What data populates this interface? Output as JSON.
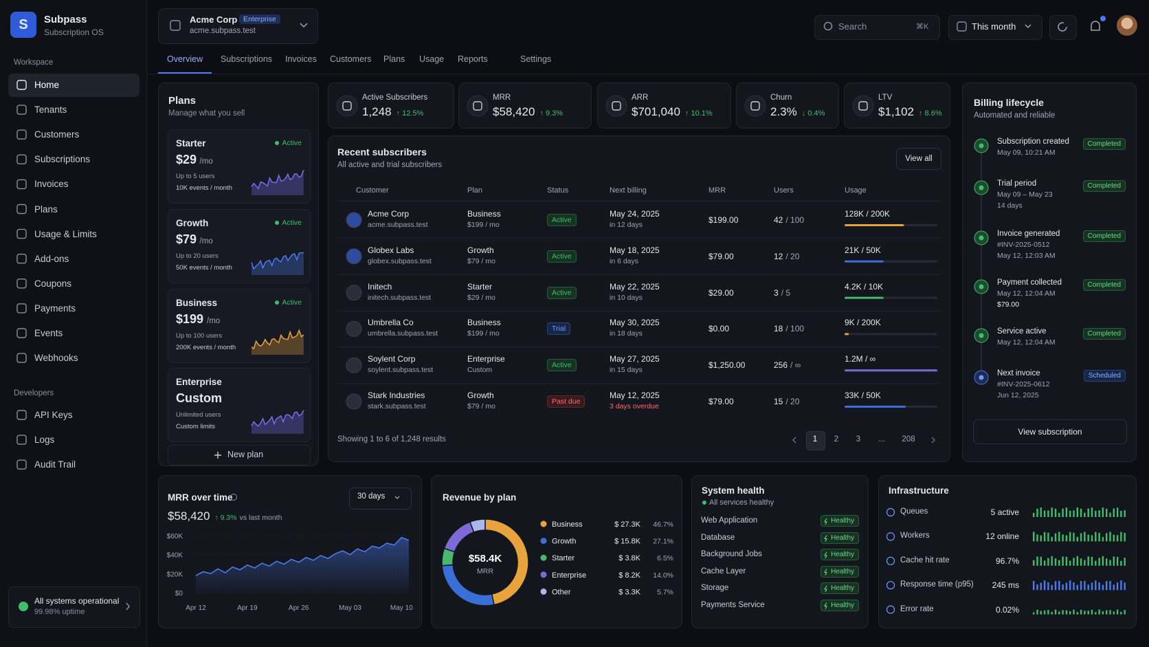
{
  "brand": {
    "logo": "S",
    "name": "Subpass",
    "tagline": "Subscription OS"
  },
  "org": {
    "name": "Acme Corp",
    "badge": "Enterprise",
    "domain": "acme.subpass.test"
  },
  "nav": {
    "workspace_label": "Workspace",
    "workspace": [
      "Home",
      "Tenants",
      "Customers",
      "Subscriptions",
      "Invoices",
      "Plans",
      "Usage & Limits",
      "Add-ons",
      "Coupons",
      "Payments",
      "Events",
      "Webhooks"
    ],
    "developers_label": "Developers",
    "developers": [
      "API Keys",
      "Logs",
      "Audit Trail"
    ]
  },
  "status": {
    "title": "All systems operational",
    "uptime": "99.98% uptime"
  },
  "search": {
    "placeholder": "Search",
    "shortcut": "⌘K"
  },
  "period": "This month",
  "tabs": [
    "Overview",
    "Subscriptions",
    "Invoices",
    "Customers",
    "Plans",
    "Usage",
    "Reports",
    "Settings"
  ],
  "plans": {
    "title": "Plans",
    "subtitle": "Manage what you sell",
    "new_plan": "New plan",
    "items": [
      {
        "name": "Starter",
        "status": "Active",
        "price": "$29",
        "unit": "/mo",
        "users": "Up to 5 users",
        "events": "10K events / month",
        "color": "#7b6cf0"
      },
      {
        "name": "Growth",
        "status": "Active",
        "price": "$79",
        "unit": "/mo",
        "users": "Up to 20 users",
        "events": "50K events / month",
        "color": "#4a7bf0"
      },
      {
        "name": "Business",
        "status": "Active",
        "price": "$199",
        "unit": "/mo",
        "users": "Up to 100 users",
        "events": "200K events / month",
        "color": "#e8a33d"
      },
      {
        "name": "Enterprise",
        "price": "Custom",
        "users": "Unlimited users",
        "events": "Custom limits",
        "color": "#7b6cf0"
      }
    ]
  },
  "kpis": [
    {
      "label": "Active Subscribers",
      "value": "1,248",
      "change": "↑ 12.5%"
    },
    {
      "label": "MRR",
      "value": "$58,420",
      "change": "↑ 9.3%"
    },
    {
      "label": "ARR",
      "value": "$701,040",
      "change": "↑ 10.1%"
    },
    {
      "label": "Churn",
      "value": "2.3%",
      "change": "↓ 0.4%"
    },
    {
      "label": "LTV",
      "value": "$1,102",
      "change": "↑ 8.6%"
    }
  ],
  "subscribers": {
    "title": "Recent subscribers",
    "subtitle": "All active and trial subscribers",
    "view_all": "View all",
    "columns": [
      "Customer",
      "Plan",
      "Status",
      "Next billing",
      "MRR",
      "Users",
      "Usage"
    ],
    "rows": [
      {
        "name": "Acme Corp",
        "domain": "acme.subpass.test",
        "plan": "Business",
        "price": "$199 / mo",
        "status": "Active",
        "next": "May 24, 2025",
        "due": "in 12 days",
        "mrr": "$199.00",
        "users": "42",
        "limit": "/ 100",
        "usage": "128K / 200K"
      },
      {
        "name": "Globex Labs",
        "domain": "globex.subpass.test",
        "plan": "Growth",
        "price": "$79 / mo",
        "status": "Active",
        "next": "May 18, 2025",
        "due": "in 6 days",
        "mrr": "$79.00",
        "users": "12",
        "limit": "/ 20",
        "usage": "21K / 50K"
      },
      {
        "name": "Initech",
        "domain": "initech.subpass.test",
        "plan": "Starter",
        "price": "$29 / mo",
        "status": "Active",
        "next": "May 22, 2025",
        "due": "in 10 days",
        "mrr": "$29.00",
        "users": "3",
        "limit": "/ 5",
        "usage": "4.2K / 10K"
      },
      {
        "name": "Umbrella Co",
        "domain": "umbrella.subpass.test",
        "plan": "Business",
        "price": "$199 / mo",
        "status": "Trial",
        "next": "May 30, 2025",
        "due": "in 18 days",
        "mrr": "$0.00",
        "users": "18",
        "limit": "/ 100",
        "usage": "9K / 200K"
      },
      {
        "name": "Soylent Corp",
        "domain": "soylent.subpass.test",
        "plan": "Enterprise",
        "price": "Custom",
        "status": "Active",
        "next": "May 27, 2025",
        "due": "in 15 days",
        "mrr": "$1,250.00",
        "users": "256",
        "limit": "/ ∞",
        "usage": "1.2M / ∞"
      },
      {
        "name": "Stark Industries",
        "domain": "stark.subpass.test",
        "plan": "Growth",
        "price": "$79 / mo",
        "status": "Past due",
        "next": "May 12, 2025",
        "due": "3 days overdue",
        "mrr": "$79.00",
        "users": "15",
        "limit": "/ 20",
        "usage": "33K / 50K"
      }
    ],
    "footer": "Showing 1 to 6 of 1,248 results",
    "pages": [
      "1",
      "2",
      "3",
      "...",
      "208"
    ]
  },
  "billing": {
    "title": "Billing lifecycle",
    "subtitle": "Automated and reliable",
    "button": "View subscription",
    "steps": [
      {
        "title": "Subscription created",
        "lines": [
          "May 09, 10:21 AM"
        ],
        "status": "Completed"
      },
      {
        "title": "Trial period",
        "lines": [
          "May 09 – May 23",
          "14 days"
        ],
        "status": "Completed"
      },
      {
        "title": "Invoice generated",
        "lines": [
          "#INV-2025-0512",
          "May 12, 12:03 AM"
        ],
        "status": "Completed"
      },
      {
        "title": "Payment collected",
        "lines": [
          "May 12, 12:04 AM",
          "$79.00"
        ],
        "status": "Completed"
      },
      {
        "title": "Service active",
        "lines": [
          "May 12, 12:04 AM"
        ],
        "status": "Completed"
      },
      {
        "title": "Next invoice",
        "lines": [
          "#INV-2025-0612",
          "Jun 12, 2025"
        ],
        "status": "Scheduled"
      }
    ]
  },
  "health": {
    "title": "System health",
    "subtitle": "All services healthy",
    "items": [
      {
        "name": "Web Application",
        "status": "Healthy"
      },
      {
        "name": "Database",
        "status": "Healthy"
      },
      {
        "name": "Background Jobs",
        "status": "Healthy"
      },
      {
        "name": "Cache Layer",
        "status": "Healthy"
      },
      {
        "name": "Storage",
        "status": "Healthy"
      },
      {
        "name": "Payments Service",
        "status": "Healthy"
      }
    ]
  },
  "infrastructure": {
    "title": "Infrastructure",
    "items": [
      {
        "name": "Queues",
        "value": "5 active",
        "color": "#3fbf6a"
      },
      {
        "name": "Workers",
        "value": "12 online",
        "color": "#3fbf6a"
      },
      {
        "name": "Cache hit rate",
        "value": "96.7%",
        "color": "#3fbf6a"
      },
      {
        "name": "Response time (p95)",
        "value": "245 ms",
        "color": "#4a7bf0"
      },
      {
        "name": "Error rate",
        "value": "0.02%",
        "color": "#3fbf6a"
      }
    ]
  },
  "chart_data": [
    {
      "type": "line",
      "title": "MRR over time",
      "headline": "$58,420",
      "change": "↑ 9.3%",
      "comparison": "vs last month",
      "range": "30 days",
      "color": "#4a7bf0",
      "categories": [
        "Apr 12",
        null,
        null,
        null,
        null,
        null,
        null,
        "Apr 19",
        null,
        null,
        null,
        null,
        null,
        null,
        "Apr 26",
        null,
        null,
        null,
        null,
        null,
        null,
        "May 03",
        null,
        null,
        null,
        null,
        null,
        null,
        "May 10",
        null
      ],
      "values": [
        18000,
        22000,
        20000,
        25000,
        21000,
        27000,
        24000,
        29000,
        26000,
        31000,
        28000,
        33000,
        30000,
        35000,
        32000,
        37000,
        34000,
        39000,
        36000,
        41000,
        44000,
        40000,
        46000,
        43000,
        49000,
        47000,
        52000,
        50000,
        58000,
        55000
      ],
      "ylim": [
        0,
        65000
      ],
      "yticks": [
        {
          "value": 0,
          "label": "$0"
        },
        {
          "value": 20000,
          "label": "$20K"
        },
        {
          "value": 40000,
          "label": "$40K"
        },
        {
          "value": 60000,
          "label": "$60K"
        }
      ],
      "grid": true
    },
    {
      "type": "pie",
      "title": "Revenue by plan",
      "center_value": "$58.4K",
      "center_label": "MRR",
      "categories": [
        "Business",
        "Growth",
        "Starter",
        "Enterprise",
        "Other"
      ],
      "amounts": [
        "$ 27.3K",
        "$ 15.8K",
        "$ 3.8K",
        "$ 8.2K",
        "$ 3.3K"
      ],
      "values": [
        46.7,
        27.1,
        6.5,
        14.0,
        5.7
      ],
      "value_labels": [
        "46.7%",
        "27.1%",
        "6.5%",
        "14.0%",
        "5.7%"
      ],
      "colors": [
        "#e8a33d",
        "#3b6fd8",
        "#49b86e",
        "#7d6ad8",
        "#a9b8e8"
      ]
    }
  ]
}
